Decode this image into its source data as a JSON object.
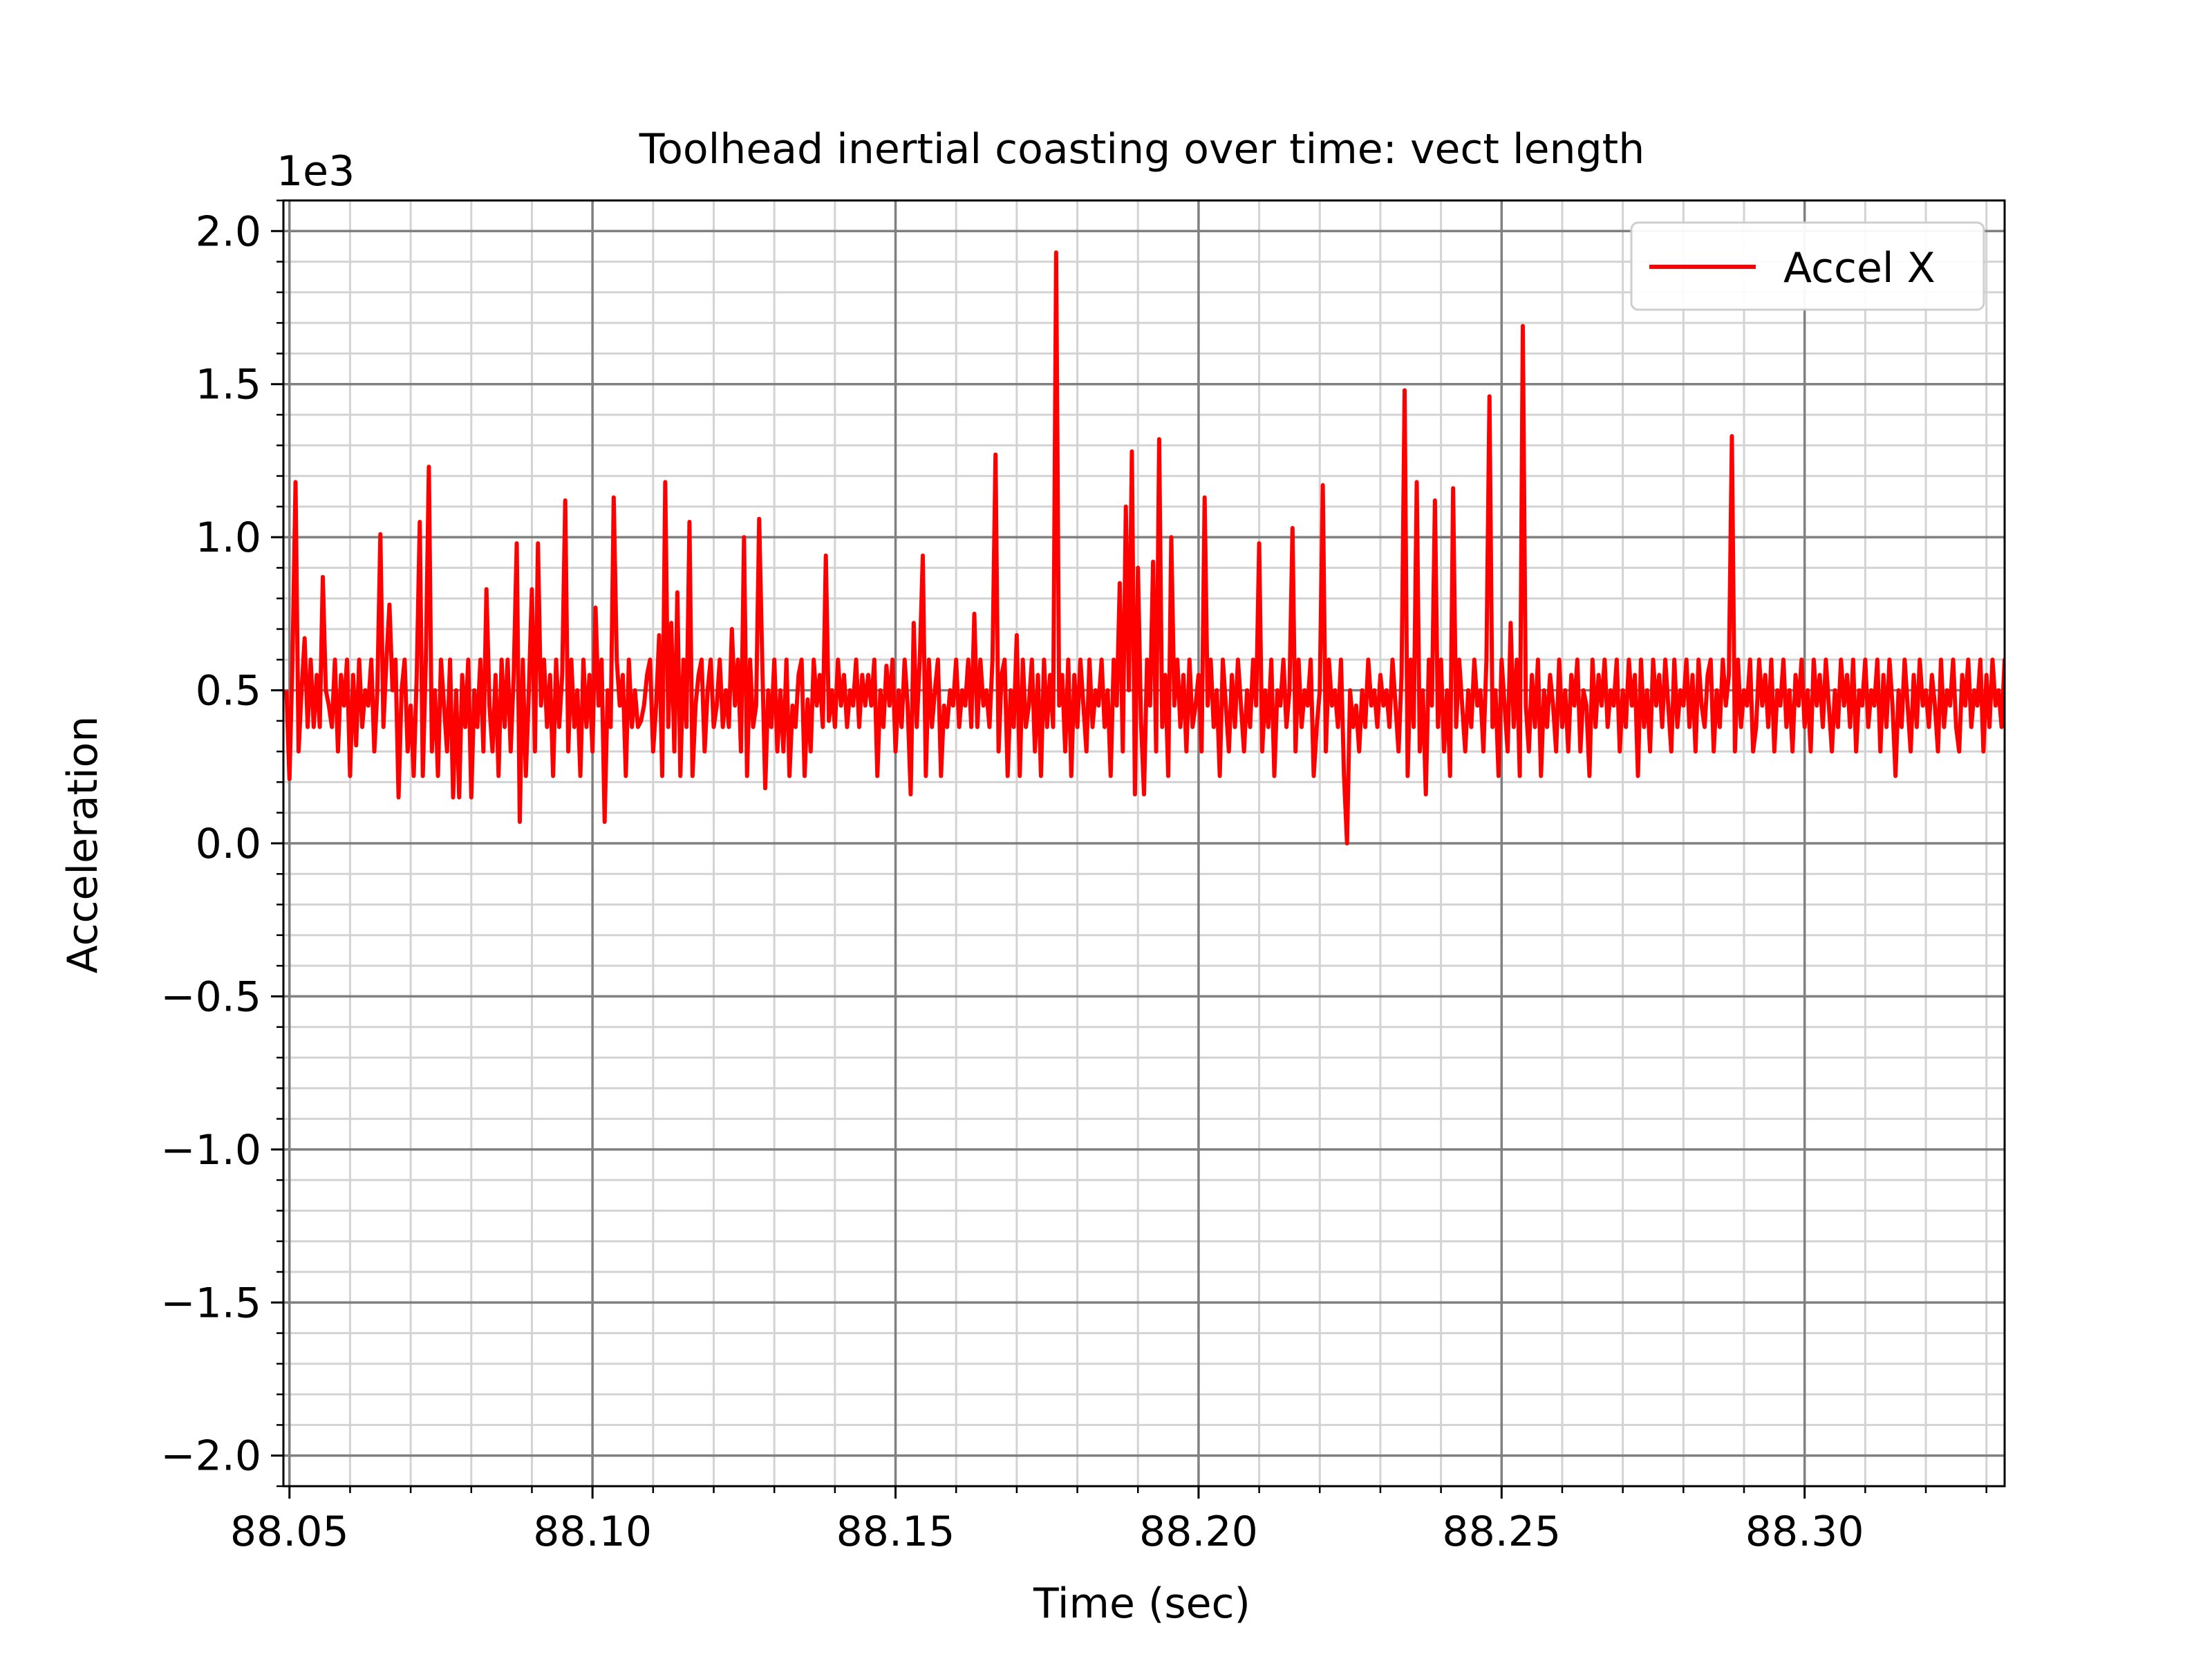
{
  "chart_data": {
    "type": "line",
    "title": "Toolhead inertial coasting over time: vect length",
    "xlabel": "Time (sec)",
    "ylabel": "Acceleration",
    "y_multiplier_label": "1e3",
    "xlim": [
      88.049,
      88.333
    ],
    "ylim": [
      -2.1,
      2.1
    ],
    "x_ticks": [
      88.05,
      88.1,
      88.15,
      88.2,
      88.25,
      88.3
    ],
    "x_tick_labels": [
      "88.05",
      "88.10",
      "88.15",
      "88.20",
      "88.25",
      "88.30"
    ],
    "y_ticks": [
      -2.0,
      -1.5,
      -1.0,
      -0.5,
      0.0,
      0.5,
      1.0,
      1.5,
      2.0
    ],
    "y_tick_labels": [
      "−2.0",
      "−1.5",
      "−1.0",
      "−0.5",
      "0.0",
      "0.5",
      "1.0",
      "1.5",
      "2.0"
    ],
    "grid": {
      "major": true,
      "minor": true
    },
    "legend_position": "top-right",
    "series": [
      {
        "name": "Accel X",
        "color": "#ff0000",
        "x_start": 88.0495,
        "x_step": 0.0005,
        "values": [
          0.5,
          0.21,
          0.6,
          1.18,
          0.3,
          0.5,
          0.67,
          0.38,
          0.6,
          0.38,
          0.55,
          0.38,
          0.87,
          0.5,
          0.45,
          0.38,
          0.6,
          0.3,
          0.55,
          0.45,
          0.6,
          0.22,
          0.55,
          0.32,
          0.6,
          0.38,
          0.5,
          0.45,
          0.6,
          0.3,
          0.5,
          1.01,
          0.38,
          0.6,
          0.78,
          0.5,
          0.6,
          0.15,
          0.5,
          0.6,
          0.3,
          0.45,
          0.22,
          0.55,
          1.05,
          0.22,
          0.6,
          1.23,
          0.3,
          0.5,
          0.22,
          0.6,
          0.45,
          0.3,
          0.6,
          0.15,
          0.5,
          0.15,
          0.55,
          0.38,
          0.6,
          0.15,
          0.5,
          0.38,
          0.6,
          0.3,
          0.83,
          0.45,
          0.3,
          0.55,
          0.22,
          0.6,
          0.38,
          0.6,
          0.3,
          0.55,
          0.98,
          0.07,
          0.6,
          0.22,
          0.5,
          0.83,
          0.3,
          0.98,
          0.45,
          0.6,
          0.38,
          0.55,
          0.22,
          0.6,
          0.38,
          0.55,
          1.12,
          0.3,
          0.6,
          0.38,
          0.5,
          0.22,
          0.6,
          0.38,
          0.55,
          0.3,
          0.77,
          0.45,
          0.6,
          0.07,
          0.5,
          0.38,
          1.13,
          0.6,
          0.45,
          0.55,
          0.22,
          0.6,
          0.38,
          0.5,
          0.38,
          0.4,
          0.45,
          0.55,
          0.6,
          0.3,
          0.45,
          0.68,
          0.22,
          1.18,
          0.38,
          0.72,
          0.3,
          0.82,
          0.22,
          0.6,
          0.38,
          1.05,
          0.22,
          0.45,
          0.55,
          0.6,
          0.3,
          0.5,
          0.6,
          0.38,
          0.45,
          0.6,
          0.38,
          0.5,
          0.38,
          0.7,
          0.45,
          0.6,
          0.3,
          1.0,
          0.22,
          0.6,
          0.38,
          0.45,
          1.06,
          0.6,
          0.18,
          0.5,
          0.38,
          0.6,
          0.3,
          0.5,
          0.3,
          0.6,
          0.22,
          0.45,
          0.38,
          0.55,
          0.6,
          0.22,
          0.47,
          0.3,
          0.6,
          0.45,
          0.55,
          0.38,
          0.94,
          0.4,
          0.5,
          0.38,
          0.6,
          0.45,
          0.55,
          0.38,
          0.5,
          0.45,
          0.6,
          0.38,
          0.55,
          0.45,
          0.55,
          0.45,
          0.6,
          0.22,
          0.5,
          0.38,
          0.58,
          0.45,
          0.6,
          0.3,
          0.5,
          0.38,
          0.6,
          0.45,
          0.16,
          0.72,
          0.38,
          0.6,
          0.94,
          0.22,
          0.6,
          0.38,
          0.5,
          0.6,
          0.22,
          0.45,
          0.38,
          0.5,
          0.45,
          0.6,
          0.38,
          0.5,
          0.45,
          0.6,
          0.38,
          0.75,
          0.38,
          0.6,
          0.45,
          0.5,
          0.38,
          0.6,
          1.27,
          0.3,
          0.55,
          0.6,
          0.22,
          0.5,
          0.38,
          0.68,
          0.22,
          0.6,
          0.38,
          0.45,
          0.6,
          0.3,
          0.55,
          0.22,
          0.6,
          0.38,
          0.55,
          0.38,
          1.93,
          0.45,
          0.55,
          0.3,
          0.6,
          0.22,
          0.55,
          0.38,
          0.6,
          0.45,
          0.3,
          0.6,
          0.38,
          0.5,
          0.45,
          0.6,
          0.38,
          0.5,
          0.22,
          0.6,
          0.45,
          0.85,
          0.3,
          1.1,
          0.5,
          1.28,
          0.16,
          0.9,
          0.4,
          0.16,
          0.6,
          0.45,
          0.92,
          0.3,
          1.32,
          0.38,
          0.55,
          0.22,
          1.0,
          0.45,
          0.6,
          0.38,
          0.55,
          0.3,
          0.6,
          0.38,
          0.45,
          0.55,
          0.3,
          1.13,
          0.45,
          0.6,
          0.38,
          0.5,
          0.22,
          0.6,
          0.45,
          0.3,
          0.55,
          0.38,
          0.6,
          0.45,
          0.3,
          0.5,
          0.38,
          0.6,
          0.45,
          0.98,
          0.3,
          0.5,
          0.38,
          0.6,
          0.22,
          0.5,
          0.45,
          0.6,
          0.38,
          0.5,
          1.03,
          0.3,
          0.6,
          0.38,
          0.5,
          0.45,
          0.6,
          0.22,
          0.38,
          0.5,
          1.17,
          0.3,
          0.6,
          0.45,
          0.5,
          0.38,
          0.6,
          0.22,
          0.0,
          0.5,
          0.38,
          0.45,
          0.3,
          0.5,
          0.38,
          0.6,
          0.45,
          0.5,
          0.38,
          0.55,
          0.45,
          0.5,
          0.38,
          0.6,
          0.45,
          0.3,
          0.55,
          1.48,
          0.22,
          0.6,
          0.38,
          1.18,
          0.3,
          0.5,
          0.16,
          0.6,
          0.45,
          1.12,
          0.38,
          0.6,
          0.3,
          0.5,
          0.22,
          1.16,
          0.38,
          0.6,
          0.45,
          0.3,
          0.5,
          0.38,
          0.6,
          0.45,
          0.5,
          0.3,
          0.6,
          1.46,
          0.38,
          0.5,
          0.22,
          0.6,
          0.45,
          0.3,
          0.72,
          0.38,
          0.6,
          0.22,
          1.69,
          0.45,
          0.3,
          0.55,
          0.38,
          0.6,
          0.22,
          0.5,
          0.38,
          0.55,
          0.45,
          0.3,
          0.6,
          0.38,
          0.5,
          0.3,
          0.55,
          0.45,
          0.6,
          0.3,
          0.5,
          0.45,
          0.22,
          0.6,
          0.38,
          0.55,
          0.45,
          0.6,
          0.38,
          0.5,
          0.45,
          0.6,
          0.3,
          0.5,
          0.38,
          0.6,
          0.45,
          0.55,
          0.22,
          0.6,
          0.38,
          0.5,
          0.3,
          0.6,
          0.45,
          0.55,
          0.38,
          0.6,
          0.45,
          0.3,
          0.6,
          0.38,
          0.5,
          0.45,
          0.6,
          0.38,
          0.55,
          0.3,
          0.6,
          0.45,
          0.38,
          0.55,
          0.6,
          0.3,
          0.5,
          0.38,
          0.6,
          0.45,
          0.55,
          1.33,
          0.3,
          0.6,
          0.38,
          0.5,
          0.45,
          0.6,
          0.3,
          0.38,
          0.6,
          0.45,
          0.55,
          0.38,
          0.6,
          0.3,
          0.5,
          0.45,
          0.6,
          0.38,
          0.5,
          0.3,
          0.55,
          0.45,
          0.6,
          0.38,
          0.5,
          0.3,
          0.6,
          0.45,
          0.55,
          0.38,
          0.6,
          0.45,
          0.3,
          0.5,
          0.38,
          0.6,
          0.45,
          0.55,
          0.38,
          0.6,
          0.3,
          0.5,
          0.45,
          0.6,
          0.38,
          0.5,
          0.45,
          0.6,
          0.3,
          0.55,
          0.38,
          0.6,
          0.45,
          0.22,
          0.5,
          0.38,
          0.6,
          0.45,
          0.3,
          0.55,
          0.38,
          0.6,
          0.45,
          0.5,
          0.38,
          0.55,
          0.45,
          0.3,
          0.6,
          0.38,
          0.5,
          0.45,
          0.6,
          0.38,
          0.3,
          0.55,
          0.45,
          0.6,
          0.38,
          0.5,
          0.45,
          0.6,
          0.3,
          0.55,
          0.38,
          0.6,
          0.45,
          0.5,
          0.38,
          0.6,
          0.3,
          0.55,
          0.45,
          0.6,
          0.38,
          0.5,
          0.45,
          0.6,
          0.38,
          0.55,
          0.3,
          0.6,
          0.45,
          0.5,
          0.38,
          0.6,
          0.45,
          0.55,
          0.38,
          0.6,
          0.3,
          0.5,
          0.45,
          0.6,
          0.38,
          0.55,
          0.45,
          0.3,
          0.6,
          0.38,
          0.5,
          0.45,
          0.6,
          0.38,
          0.55,
          0.3,
          0.6,
          0.45,
          0.5,
          0.38,
          0.6,
          0.45,
          0.55,
          0.38,
          0.6,
          0.3,
          0.5,
          0.45,
          0.6,
          0.38,
          0.55,
          0.45,
          0.3,
          0.6,
          0.38,
          0.5,
          0.45,
          0.6,
          0.38,
          0.55,
          0.3,
          0.6,
          0.45,
          0.5,
          0.38,
          0.6,
          0.45,
          0.55,
          0.38,
          0.6,
          0.3,
          0.5,
          0.45,
          0.6,
          0.38,
          0.55,
          0.45
        ]
      }
    ]
  }
}
